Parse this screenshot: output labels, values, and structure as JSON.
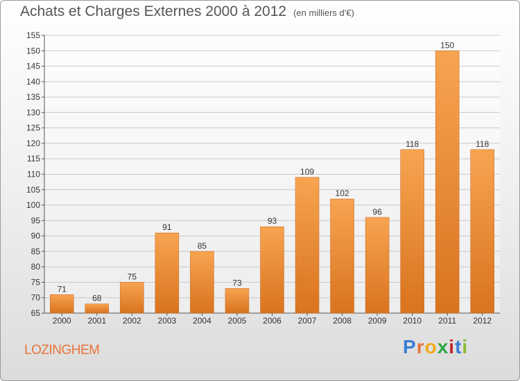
{
  "header": {
    "title": "Achats et Charges Externes 2000 à 2012",
    "unit": "(en milliers d'€)"
  },
  "footer": {
    "commune": "LOZINGHEM",
    "logo_letters": [
      "P",
      "r",
      "o",
      "x",
      "i",
      "t",
      "i"
    ],
    "logo_colors": [
      "#3a7fd5",
      "#e8743b",
      "#f2a91d",
      "#2aa845",
      "#c1272d",
      "#3a7fd5",
      "#8ab832"
    ]
  },
  "chart_data": {
    "type": "bar",
    "title": "Achats et Charges Externes 2000 à 2012",
    "subtitle": "(en milliers d'€)",
    "categories": [
      "2000",
      "2001",
      "2002",
      "2003",
      "2004",
      "2005",
      "2006",
      "2007",
      "2008",
      "2009",
      "2010",
      "2011",
      "2012"
    ],
    "values": [
      71,
      68,
      75,
      91,
      85,
      73,
      93,
      109,
      102,
      96,
      118,
      150,
      118
    ],
    "ylim": [
      65,
      155
    ],
    "yticks": [
      65,
      70,
      75,
      80,
      85,
      90,
      95,
      100,
      105,
      110,
      115,
      120,
      125,
      130,
      135,
      140,
      145,
      150,
      155
    ],
    "grid": true,
    "bar_color": "#f0933a"
  }
}
